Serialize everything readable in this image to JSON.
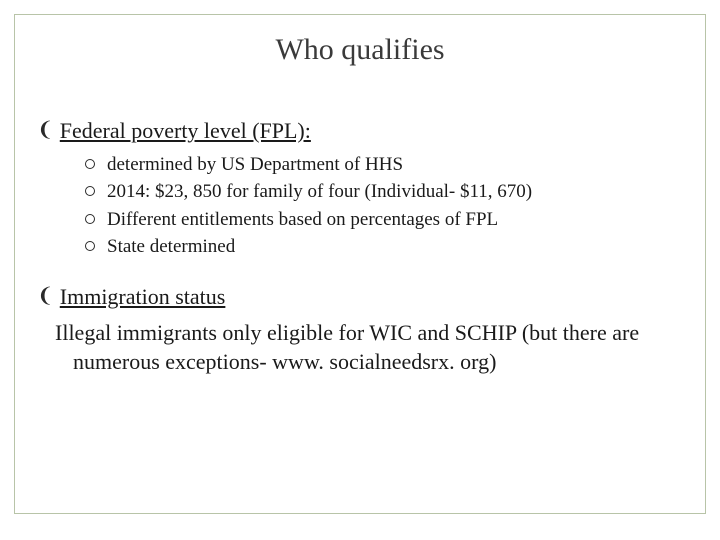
{
  "slide": {
    "title": "Who qualifies",
    "title_color": "#3a3a3a",
    "title_fontsize": 30,
    "frame_border_color": "#b8c4a8",
    "background_color": "#ffffff",
    "text_color": "#1a1a1a",
    "body_fontsize": 22,
    "sub_fontsize": 19
  },
  "items": {
    "main1": {
      "label": "Federal poverty level (FPL):",
      "subs": {
        "s1": "determined by US Department of HHS",
        "s2": "2014: $23, 850 for family of four (Individual- $11, 670)",
        "s3": "Different entitlements based on percentages of FPL",
        "s4": "State determined"
      }
    },
    "main2": {
      "label": "Immigration status"
    },
    "body": "Illegal immigrants only eligible for WIC and SCHIP (but there are numerous exceptions- www. socialneedsrx. org)"
  }
}
